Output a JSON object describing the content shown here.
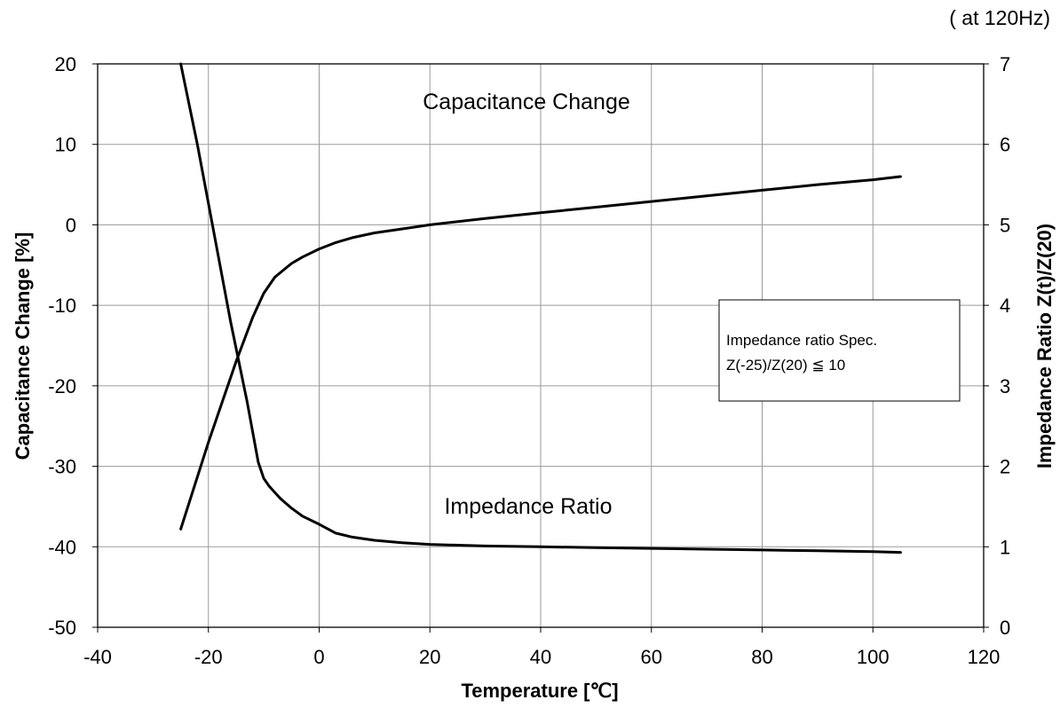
{
  "chart_data": {
    "type": "line",
    "note": "( at 120Hz)",
    "xlabel": "Temperature [℃]",
    "ylabel_left": "Capacitance Change [%]",
    "ylabel_right": "Impedance Ratio Z(t)/Z(20)",
    "xlim": [
      -40,
      120
    ],
    "ylim_left": [
      -50,
      20
    ],
    "ylim_right": [
      0,
      7
    ],
    "x_ticks": [
      "-40",
      "-20",
      "0",
      "20",
      "40",
      "60",
      "80",
      "100",
      "120"
    ],
    "y_left_ticks": [
      "20",
      "10",
      "0",
      "-10",
      "-20",
      "-30",
      "-40",
      "-50"
    ],
    "y_right_ticks": [
      "7",
      "6",
      "5",
      "4",
      "3",
      "2",
      "1",
      "0"
    ],
    "grid": true,
    "series": [
      {
        "name": "Capacitance Change",
        "axis": "left",
        "x": [
          -25,
          -20,
          -15,
          -12,
          -10,
          -8,
          -5,
          -3,
          0,
          3,
          6,
          10,
          15,
          20,
          30,
          40,
          50,
          60,
          70,
          80,
          90,
          100,
          105
        ],
        "y": [
          -37.8,
          -27,
          -17,
          -11.5,
          -8.5,
          -6.5,
          -4.8,
          -4,
          -3,
          -2.2,
          -1.6,
          -1,
          -0.5,
          0,
          0.8,
          1.5,
          2.2,
          2.9,
          3.6,
          4.3,
          5,
          5.6,
          6
        ]
      },
      {
        "name": "Impedance Ratio",
        "axis": "right",
        "x": [
          -25,
          -22,
          -19,
          -16,
          -13,
          -11,
          -10,
          -9,
          -7,
          -5,
          -3,
          0,
          3,
          6,
          10,
          15,
          20,
          30,
          40,
          50,
          60,
          70,
          80,
          90,
          100,
          105
        ],
        "y": [
          7.0,
          6.0,
          4.9,
          3.8,
          2.8,
          2.05,
          1.85,
          1.75,
          1.6,
          1.48,
          1.38,
          1.28,
          1.17,
          1.12,
          1.08,
          1.05,
          1.03,
          1.01,
          1.0,
          0.99,
          0.98,
          0.97,
          0.96,
          0.95,
          0.94,
          0.93
        ]
      }
    ],
    "annotations": [
      {
        "text": "Capacitance Change"
      },
      {
        "text": "Impedance Ratio"
      }
    ],
    "spec_box": {
      "line1": "Impedance  ratio Spec.",
      "line2": "Z(-25)/Z(20)  ≦ 10"
    }
  }
}
